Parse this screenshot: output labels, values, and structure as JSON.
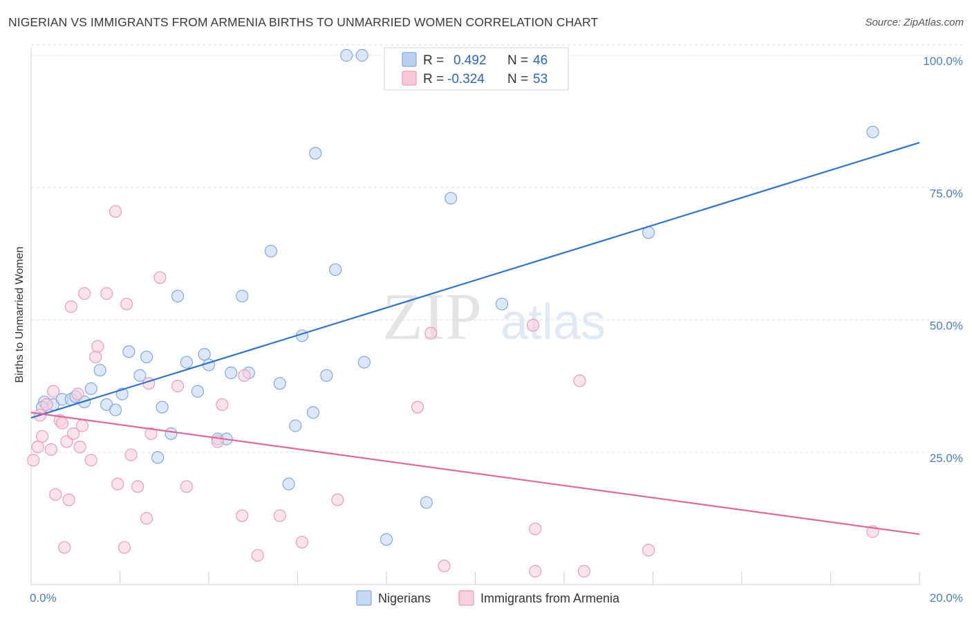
{
  "header": {
    "title": "NIGERIAN VS IMMIGRANTS FROM ARMENIA BIRTHS TO UNMARRIED WOMEN CORRELATION CHART",
    "source": "Source: ZipAtlas.com"
  },
  "watermark": {
    "zip": "ZIP",
    "atlas": "atlas"
  },
  "stats": [
    {
      "r_label": "R =",
      "r": "0.492",
      "n_label": "N =",
      "n": "46",
      "color": "#7fa8e6",
      "fill": "#b9d0f3"
    },
    {
      "r_label": "R =",
      "r": "-0.324",
      "n_label": "N =",
      "n": "53",
      "color": "#ee9ab8",
      "fill": "#f8c8d8"
    }
  ],
  "chart_data": {
    "type": "scatter",
    "title": "NIGERIAN VS IMMIGRANTS FROM ARMENIA BIRTHS TO UNMARRIED WOMEN CORRELATION CHART",
    "xlabel": "",
    "ylabel": "Births to Unmarried Women",
    "xlim": [
      0,
      20
    ],
    "ylim": [
      0,
      102
    ],
    "x_tick_labels": [
      "0.0%",
      "20.0%"
    ],
    "y_ticks": [
      {
        "value": 25,
        "label": "25.0%"
      },
      {
        "value": 50,
        "label": "50.0%"
      },
      {
        "value": 75,
        "label": "75.0%"
      },
      {
        "value": 100,
        "label": "100.0%"
      }
    ],
    "grid": true,
    "legend_position": "bottom-center",
    "series": [
      {
        "name": "Nigerians",
        "color": "#7fa8e6",
        "fill": "#c5d9f5",
        "line_color": "#2f72d0",
        "trend": [
          [
            0,
            31.5
          ],
          [
            20,
            83.5
          ]
        ],
        "points": [
          [
            0.3,
            34.5
          ],
          [
            0.5,
            34
          ],
          [
            0.7,
            35
          ],
          [
            0.9,
            35
          ],
          [
            1.0,
            35.5
          ],
          [
            1.2,
            34.5
          ],
          [
            1.35,
            37
          ],
          [
            1.55,
            40.5
          ],
          [
            1.7,
            34
          ],
          [
            1.9,
            33
          ],
          [
            2.05,
            36
          ],
          [
            2.2,
            44
          ],
          [
            2.45,
            39.5
          ],
          [
            2.6,
            43
          ],
          [
            2.85,
            24
          ],
          [
            2.95,
            33.5
          ],
          [
            3.15,
            28.5
          ],
          [
            3.3,
            54.5
          ],
          [
            3.5,
            42
          ],
          [
            3.75,
            36.5
          ],
          [
            3.9,
            43.5
          ],
          [
            4.0,
            41.5
          ],
          [
            4.2,
            27.5
          ],
          [
            4.4,
            27.5
          ],
          [
            4.5,
            40
          ],
          [
            4.75,
            54.5
          ],
          [
            4.9,
            40
          ],
          [
            5.4,
            63
          ],
          [
            5.6,
            38
          ],
          [
            5.8,
            19
          ],
          [
            5.95,
            30
          ],
          [
            6.1,
            47
          ],
          [
            6.35,
            32.5
          ],
          [
            6.4,
            81.5
          ],
          [
            6.65,
            39.5
          ],
          [
            6.85,
            59.5
          ],
          [
            7.1,
            100
          ],
          [
            7.45,
            100
          ],
          [
            7.5,
            42
          ],
          [
            8.0,
            8.5
          ],
          [
            8.9,
            15.5
          ],
          [
            9.45,
            73
          ],
          [
            10.6,
            53
          ],
          [
            13.9,
            66.5
          ],
          [
            18.95,
            85.5
          ],
          [
            0.25,
            33.5
          ]
        ]
      },
      {
        "name": "Immigrants from Armenia",
        "color": "#ee9ab8",
        "fill": "#f9d0de",
        "line_color": "#e06896",
        "trend": [
          [
            0,
            32.5
          ],
          [
            20,
            9.5
          ]
        ],
        "points": [
          [
            0.05,
            23.5
          ],
          [
            0.15,
            26
          ],
          [
            0.2,
            32
          ],
          [
            0.25,
            28
          ],
          [
            0.35,
            34
          ],
          [
            0.45,
            25.5
          ],
          [
            0.5,
            36.5
          ],
          [
            0.55,
            17
          ],
          [
            0.65,
            31
          ],
          [
            0.7,
            30.5
          ],
          [
            0.75,
            7
          ],
          [
            0.8,
            27
          ],
          [
            0.85,
            16
          ],
          [
            0.9,
            52.5
          ],
          [
            0.95,
            28.5
          ],
          [
            1.05,
            36
          ],
          [
            1.1,
            26
          ],
          [
            1.15,
            30
          ],
          [
            1.2,
            55
          ],
          [
            1.35,
            23.5
          ],
          [
            1.45,
            43
          ],
          [
            1.5,
            45
          ],
          [
            1.7,
            55
          ],
          [
            1.9,
            70.5
          ],
          [
            1.95,
            19
          ],
          [
            2.1,
            7
          ],
          [
            2.15,
            53
          ],
          [
            2.25,
            24.5
          ],
          [
            2.4,
            18.5
          ],
          [
            2.6,
            12.5
          ],
          [
            2.65,
            38
          ],
          [
            2.7,
            28.5
          ],
          [
            2.9,
            58
          ],
          [
            3.3,
            37.5
          ],
          [
            3.5,
            18.5
          ],
          [
            4.2,
            27
          ],
          [
            4.3,
            34
          ],
          [
            4.75,
            13
          ],
          [
            4.8,
            39.5
          ],
          [
            5.1,
            5.5
          ],
          [
            5.6,
            13
          ],
          [
            6.1,
            8
          ],
          [
            6.9,
            16
          ],
          [
            8.7,
            33.5
          ],
          [
            9.0,
            47.5
          ],
          [
            9.3,
            3.5
          ],
          [
            11.3,
            49
          ],
          [
            11.35,
            2.5
          ],
          [
            11.35,
            10.5
          ],
          [
            12.35,
            38.5
          ],
          [
            12.45,
            2.5
          ],
          [
            13.9,
            6.5
          ],
          [
            18.95,
            10
          ]
        ]
      }
    ]
  }
}
